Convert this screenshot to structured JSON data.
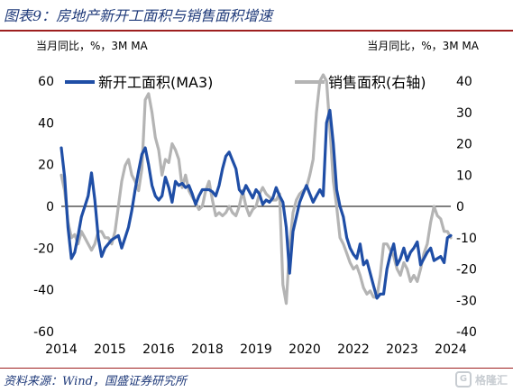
{
  "title": "图表9：房地产新开工面积与销售面积增速",
  "unit_left": "当月同比，%，3M MA",
  "unit_right": "当月同比，%，3M MA",
  "source": "资料来源：Wind，国盛证券研究所",
  "watermark": "格隆汇",
  "chart_data": {
    "type": "line",
    "x_tick_labels": [
      "2014",
      "2015",
      "2016",
      "2018",
      "2019",
      "2020",
      "2022",
      "2023",
      "2024"
    ],
    "y_left": {
      "range": [
        -60,
        60
      ],
      "ticks": [
        -60,
        -40,
        -20,
        0,
        20,
        40,
        60
      ]
    },
    "y_right": {
      "range": [
        -40,
        40
      ],
      "ticks": [
        -40,
        -30,
        -20,
        -10,
        0,
        10,
        20,
        30,
        40
      ]
    },
    "legend_position": "top",
    "series": [
      {
        "name": "新开工面积(MA3)",
        "axis": "left",
        "color": "#1f4ea6",
        "values": [
          28,
          14,
          -10,
          -25,
          -22,
          -14,
          -5,
          0,
          5,
          16,
          3,
          -15,
          -24,
          -20,
          -18,
          -16,
          -15,
          -14,
          -20,
          -15,
          -10,
          -2,
          8,
          17,
          25,
          28,
          20,
          10,
          5,
          3,
          5,
          14,
          9,
          2,
          12,
          10,
          11,
          9,
          10,
          6,
          1,
          5,
          8,
          8,
          8,
          7,
          5,
          10,
          18,
          24,
          26,
          22,
          18,
          8,
          6,
          10,
          7,
          4,
          8,
          6,
          1,
          3,
          2,
          4,
          9,
          5,
          2,
          -10,
          -32,
          -12,
          -5,
          2,
          6,
          10,
          6,
          2,
          5,
          8,
          5,
          40,
          46,
          30,
          8,
          0,
          -5,
          -15,
          -20,
          -23,
          -25,
          -18,
          -28,
          -26,
          -32,
          -38,
          -44,
          -42,
          -42,
          -30,
          -23,
          -18,
          -28,
          -25,
          -20,
          -26,
          -22,
          -20,
          -17,
          -28,
          -25,
          -22,
          -20,
          -26,
          -25,
          -24,
          -27,
          -15,
          -14
        ]
      },
      {
        "name": "销售面积(右轴)",
        "axis": "right",
        "color": "#b4b4b4",
        "values": [
          10,
          5,
          -5,
          -10,
          -9,
          -12,
          -8,
          -10,
          -12,
          -14,
          -12,
          -8,
          -8,
          -10,
          -10,
          -12,
          -8,
          0,
          8,
          13,
          15,
          10,
          8,
          5,
          12,
          34,
          36,
          30,
          22,
          18,
          10,
          15,
          14,
          20,
          18,
          15,
          6,
          10,
          5,
          3,
          1,
          -1,
          0,
          5,
          8,
          2,
          -3,
          -2,
          -3,
          -2,
          0,
          -2,
          -3,
          0,
          5,
          0,
          -3,
          -1,
          0,
          4,
          6,
          4,
          3,
          2,
          2,
          4,
          -25,
          -31,
          -13,
          -2,
          2,
          4,
          5,
          6,
          10,
          15,
          30,
          40,
          42,
          40,
          25,
          8,
          0,
          -10,
          -12,
          -15,
          -18,
          -20,
          -19,
          -22,
          -26,
          -28,
          -27,
          -29,
          -29,
          -22,
          -12,
          -12,
          -14,
          -16,
          -20,
          -22,
          -18,
          -20,
          -24,
          -22,
          -24,
          -20,
          -15,
          -12,
          -5,
          0,
          -3,
          -4,
          -8,
          -8,
          -10
        ]
      }
    ]
  }
}
